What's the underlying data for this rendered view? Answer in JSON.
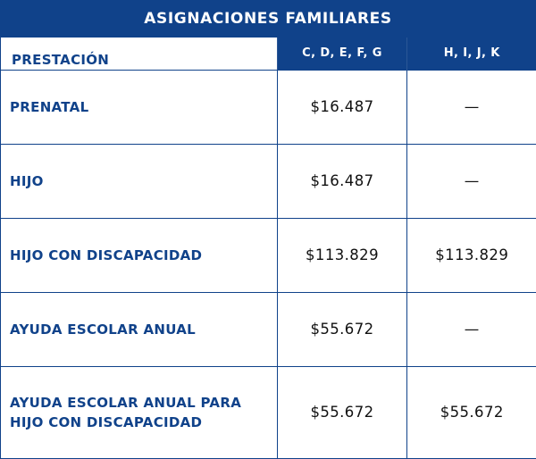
{
  "title": "ASIGNACIONES FAMILIARES",
  "table": {
    "headers": [
      "PRESTACIÓN",
      "C, D, E, F, G",
      "H, I, J, K"
    ],
    "rows": [
      {
        "label": "PRENATAL",
        "group1": "$16.487",
        "group2": "—"
      },
      {
        "label": "HIJO",
        "group1": "$16.487",
        "group2": "—"
      },
      {
        "label": "HIJO CON DISCAPACIDAD",
        "group1": "$113.829",
        "group2": "$113.829"
      },
      {
        "label": "AYUDA ESCOLAR ANUAL",
        "group1": "$55.672",
        "group2": "—"
      },
      {
        "label": "AYUDA ESCOLAR ANUAL PARA HIJO CON DISCAPACIDAD",
        "group1": "$55.672",
        "group2": "$55.672"
      }
    ]
  },
  "colors": {
    "primary": "#10428a",
    "text_dark": "#111111",
    "background": "#ffffff"
  }
}
